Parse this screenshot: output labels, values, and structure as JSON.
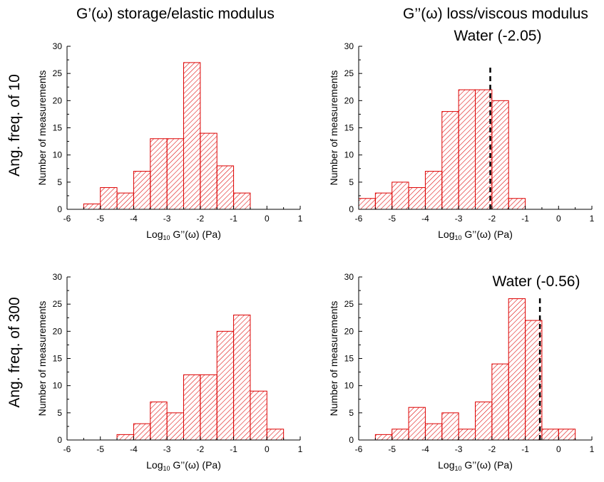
{
  "figure": {
    "column_titles": [
      "G’(ω) storage/elastic modulus",
      "G’’(ω) loss/viscous modulus"
    ],
    "row_labels": [
      "Ang. freq. of 10",
      "Ang. freq. of 300"
    ]
  },
  "colors": {
    "bar_stroke": "#dd0000",
    "bar_hatch": "#dd0000",
    "ref_line": "#000000"
  },
  "chart_data": [
    {
      "type": "bar",
      "subplot": "top-left",
      "xlabel": "Log10 G’’(ω) (Pa)",
      "ylabel": "Number of measurements",
      "xlim": [
        -6,
        1
      ],
      "ylim": [
        0,
        30
      ],
      "xticks": [
        -6,
        -5,
        -4,
        -3,
        -2,
        -1,
        0,
        1
      ],
      "yticks": [
        0,
        5,
        10,
        15,
        20,
        25,
        30
      ],
      "bin_width": 0.5,
      "bin_starts": [
        -5.5,
        -5.0,
        -4.5,
        -4.0,
        -3.5,
        -3.0,
        -2.5,
        -2.0,
        -1.5,
        -1.0
      ],
      "values": [
        1,
        4,
        3,
        7,
        13,
        13,
        27,
        14,
        8,
        3
      ]
    },
    {
      "type": "bar",
      "subplot": "top-right",
      "xlabel": "Log10 G’’(ω) (Pa)",
      "ylabel": "Number of measurements",
      "xlim": [
        -6,
        1
      ],
      "ylim": [
        0,
        30
      ],
      "xticks": [
        -6,
        -5,
        -4,
        -3,
        -2,
        -1,
        0,
        1
      ],
      "yticks": [
        0,
        5,
        10,
        15,
        20,
        25,
        30
      ],
      "bin_width": 0.5,
      "bin_starts": [
        -6.0,
        -5.5,
        -5.0,
        -4.5,
        -4.0,
        -3.5,
        -3.0,
        -2.5,
        -2.0,
        -1.5
      ],
      "values": [
        2,
        3,
        5,
        4,
        7,
        18,
        22,
        22,
        20,
        2
      ],
      "reference_line": {
        "x": -2.05,
        "label": "Water (-2.05)"
      }
    },
    {
      "type": "bar",
      "subplot": "bottom-left",
      "xlabel": "Log10 G’’(ω) (Pa)",
      "ylabel": "Number of measurements",
      "xlim": [
        -6,
        1
      ],
      "ylim": [
        0,
        30
      ],
      "xticks": [
        -6,
        -5,
        -4,
        -3,
        -2,
        -1,
        0,
        1
      ],
      "yticks": [
        0,
        5,
        10,
        15,
        20,
        25,
        30
      ],
      "bin_width": 0.5,
      "bin_starts": [
        -4.5,
        -4.0,
        -3.5,
        -3.0,
        -2.5,
        -2.0,
        -1.5,
        -1.0,
        -0.5,
        0.0
      ],
      "values": [
        1,
        3,
        7,
        5,
        12,
        12,
        20,
        23,
        9,
        2
      ]
    },
    {
      "type": "bar",
      "subplot": "bottom-right",
      "xlabel": "Log10 G’’(ω) (Pa)",
      "ylabel": "Number of measurements",
      "xlim": [
        -6,
        1
      ],
      "ylim": [
        0,
        30
      ],
      "xticks": [
        -6,
        -5,
        -4,
        -3,
        -2,
        -1,
        0,
        1
      ],
      "yticks": [
        0,
        5,
        10,
        15,
        20,
        25,
        30
      ],
      "bin_width": 0.5,
      "bin_starts": [
        -5.5,
        -5.0,
        -4.5,
        -4.0,
        -3.5,
        -3.0,
        -2.5,
        -2.0,
        -1.5,
        -1.0,
        -0.5,
        0.0
      ],
      "values": [
        1,
        2,
        6,
        3,
        5,
        2,
        7,
        14,
        26,
        22,
        2,
        2
      ],
      "reference_line": {
        "x": -0.56,
        "label": "Water (-0.56)"
      }
    }
  ]
}
